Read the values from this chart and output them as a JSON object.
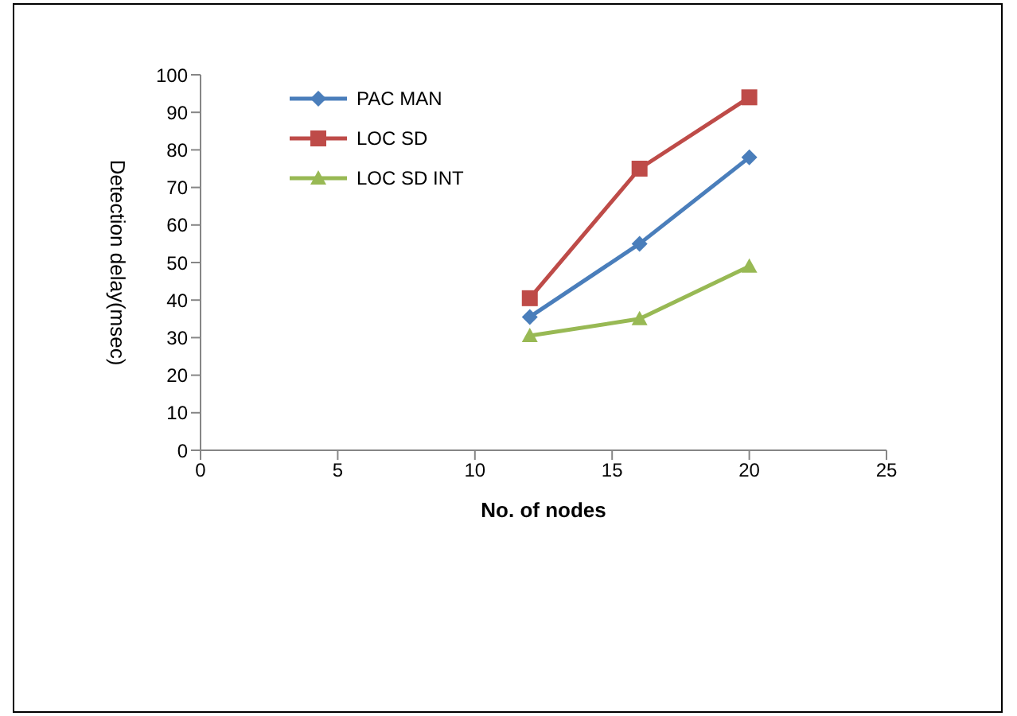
{
  "chart_data": {
    "type": "line",
    "xlabel": "No. of nodes",
    "ylabel": "Detection delay(msec)",
    "xlim": [
      0,
      25
    ],
    "xticks": [
      0,
      5,
      10,
      15,
      20,
      25
    ],
    "ylim": [
      0,
      100
    ],
    "yticks": [
      0,
      10,
      20,
      30,
      40,
      50,
      60,
      70,
      80,
      90,
      100
    ],
    "x": [
      12,
      16,
      20
    ],
    "grid": false,
    "legend": "top left",
    "series": [
      {
        "name": "PAC MAN",
        "color": "#4a7ebb",
        "marker": "diamond",
        "values": [
          35.5,
          55,
          78
        ]
      },
      {
        "name": "LOC SD",
        "color": "#be4b48",
        "marker": "square",
        "values": [
          40.5,
          75,
          94
        ]
      },
      {
        "name": "LOC SD INT",
        "color": "#98b954",
        "marker": "triangle",
        "values": [
          30.5,
          35,
          49
        ]
      }
    ]
  }
}
